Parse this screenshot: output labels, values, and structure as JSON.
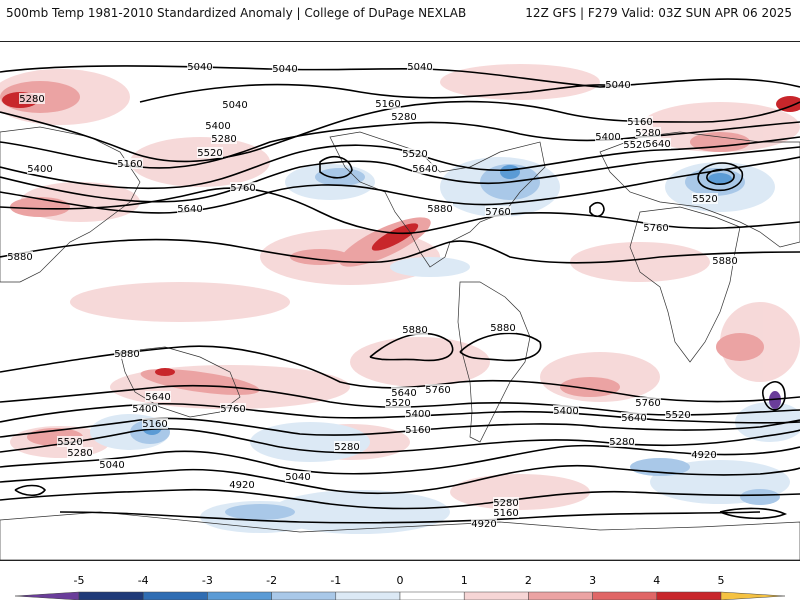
{
  "header": {
    "left": "500mb Temp 1981-2010 Standardized Anomaly | College of DuPage NEXLAB",
    "right": "12Z GFS | F279 Valid: 03Z SUN APR 06 2025"
  },
  "colorbar": {
    "ticks": [
      "-5",
      "-4",
      "-3",
      "-2",
      "-1",
      "0",
      "1",
      "2",
      "3",
      "4",
      "5"
    ],
    "colors": [
      "#6a3d9a",
      "#1f3a78",
      "#2f6db3",
      "#5b9bd5",
      "#a9c8e8",
      "#dce9f5",
      "#ffffff",
      "#f6d5d5",
      "#eba3a3",
      "#e06666",
      "#c8262b",
      "#8b0000",
      "#f5c242"
    ]
  },
  "height_contours": {
    "levels": [
      "4920",
      "5040",
      "5160",
      "5280",
      "5400",
      "5520",
      "5640",
      "5760",
      "5880"
    ],
    "labels": [
      {
        "id": "l5040a",
        "text": "5040"
      },
      {
        "id": "l5040b",
        "text": "5040"
      },
      {
        "id": "l5040c",
        "text": "5040"
      },
      {
        "id": "l5040d",
        "text": "5040"
      },
      {
        "id": "l5040e",
        "text": "5040"
      },
      {
        "id": "l5280a",
        "text": "5280"
      },
      {
        "id": "l5160a",
        "text": "5160"
      },
      {
        "id": "l5280b",
        "text": "5280"
      },
      {
        "id": "l5400a",
        "text": "5400"
      },
      {
        "id": "l5520a",
        "text": "5520"
      },
      {
        "id": "l5160b",
        "text": "5160"
      },
      {
        "id": "l5400b",
        "text": "5400"
      },
      {
        "id": "l5280c",
        "text": "5280"
      },
      {
        "id": "l5520b",
        "text": "5520"
      },
      {
        "id": "l5640a",
        "text": "5640"
      },
      {
        "id": "l5760a",
        "text": "5760"
      },
      {
        "id": "l5640b",
        "text": "5640"
      },
      {
        "id": "l5760b",
        "text": "5760"
      },
      {
        "id": "l5880a",
        "text": "5880"
      },
      {
        "id": "l5160c",
        "text": "5160"
      },
      {
        "id": "l5280d",
        "text": "5280"
      },
      {
        "id": "l5400c",
        "text": "5400"
      },
      {
        "id": "l5520c",
        "text": "5520"
      },
      {
        "id": "l5640c",
        "text": "5640"
      },
      {
        "id": "l5520d",
        "text": "5520"
      },
      {
        "id": "l5760c",
        "text": "5760"
      },
      {
        "id": "l5880b",
        "text": "5880"
      },
      {
        "id": "l5880c",
        "text": "5880"
      },
      {
        "id": "l5880d",
        "text": "5880"
      },
      {
        "id": "l5880e",
        "text": "5880"
      },
      {
        "id": "l5880f",
        "text": "5880"
      },
      {
        "id": "l5640d",
        "text": "5640"
      },
      {
        "id": "l5400d",
        "text": "5400"
      },
      {
        "id": "l5160d",
        "text": "5160"
      },
      {
        "id": "l5760d",
        "text": "5760"
      },
      {
        "id": "l5520e",
        "text": "5520"
      },
      {
        "id": "l5280e",
        "text": "5280"
      },
      {
        "id": "l5040f",
        "text": "5040"
      },
      {
        "id": "l4920a",
        "text": "4920"
      },
      {
        "id": "l5040g",
        "text": "5040"
      },
      {
        "id": "l5280f",
        "text": "5280"
      },
      {
        "id": "l5640e",
        "text": "5640"
      },
      {
        "id": "l5760e",
        "text": "5760"
      },
      {
        "id": "l5520f",
        "text": "5520"
      },
      {
        "id": "l5400e",
        "text": "5400"
      },
      {
        "id": "l5160e",
        "text": "5160"
      },
      {
        "id": "l5400f",
        "text": "5400"
      },
      {
        "id": "l5760f",
        "text": "5760"
      },
      {
        "id": "l5640f",
        "text": "5640"
      },
      {
        "id": "l5520g",
        "text": "5520"
      },
      {
        "id": "l5280g",
        "text": "5280"
      },
      {
        "id": "l4920b",
        "text": "4920"
      },
      {
        "id": "l5280h",
        "text": "5280"
      },
      {
        "id": "l5160f",
        "text": "5160"
      },
      {
        "id": "l4920c",
        "text": "4920"
      }
    ]
  }
}
